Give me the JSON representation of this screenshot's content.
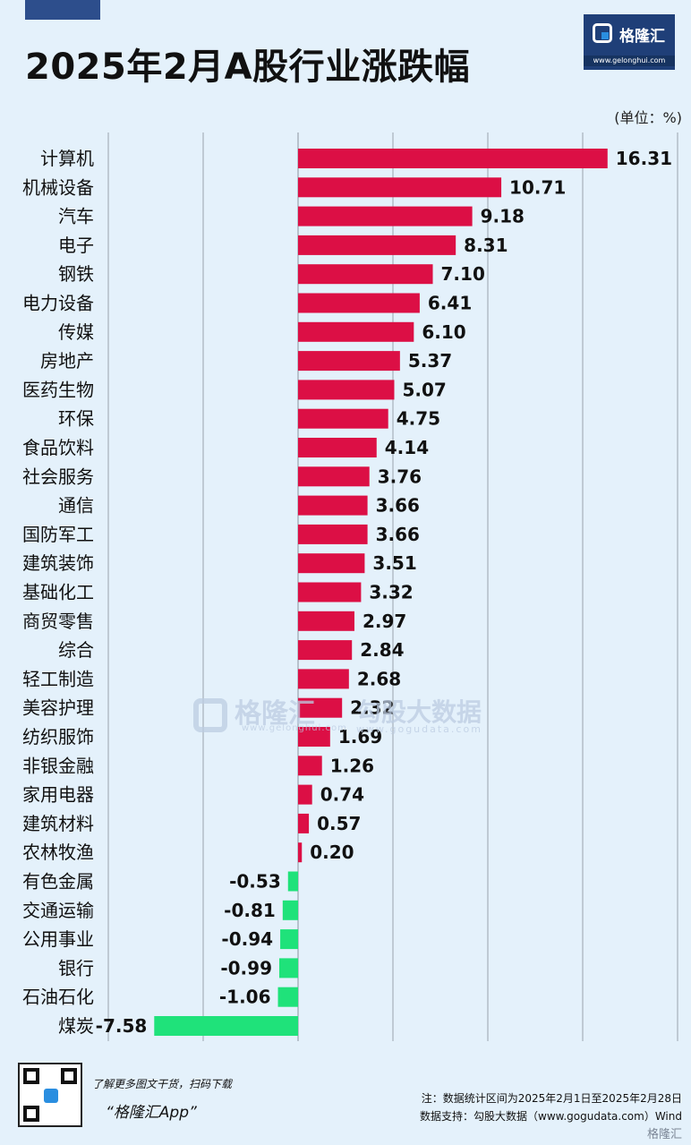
{
  "title": "2025年2月A股行业涨跌幅",
  "brand": {
    "name": "格隆汇",
    "url": "www.gelonghui.com"
  },
  "unit_label": "(单位：%)",
  "watermark": {
    "left": "格隆汇",
    "left_sub": "www.gelonghui.com",
    "right": "勾股大数据",
    "right_sub": "www.gogudata.com"
  },
  "footer": {
    "promo_line1": "了解更多图文干货，扫码下载",
    "promo_line2": "“格隆汇App”",
    "note_line1": "注：数据统计区间为2025年2月1日至2025年2月28日",
    "note_line2": "数据支持：勾股大数据（www.gogudata.com）Wind",
    "corner_logo": "格隆汇"
  },
  "colors": {
    "positive": "#dc0f45",
    "negative": "#1fe27a",
    "grid": "#9aa4ae",
    "background": "#e4f1fb"
  },
  "icons": [
    "gelonghui-logo-icon",
    "qr-code-icon"
  ],
  "chart_data": {
    "type": "bar",
    "orientation": "horizontal",
    "title": "2025年2月A股行业涨跌幅",
    "ylabel": "单位：%",
    "xlim": [
      -10,
      20
    ],
    "grid": true,
    "legend": "none",
    "categories": [
      "计算机",
      "机械设备",
      "汽车",
      "电子",
      "钢铁",
      "电力设备",
      "传媒",
      "房地产",
      "医药生物",
      "环保",
      "食品饮料",
      "社会服务",
      "通信",
      "国防军工",
      "建筑装饰",
      "基础化工",
      "商贸零售",
      "综合",
      "轻工制造",
      "美容护理",
      "纺织服饰",
      "非银金融",
      "家用电器",
      "建筑材料",
      "农林牧渔",
      "有色金属",
      "交通运输",
      "公用事业",
      "银行",
      "石油石化",
      "煤炭"
    ],
    "values": [
      16.31,
      10.71,
      9.18,
      8.31,
      7.1,
      6.41,
      6.1,
      5.37,
      5.07,
      4.75,
      4.14,
      3.76,
      3.66,
      3.66,
      3.51,
      3.32,
      2.97,
      2.84,
      2.68,
      2.32,
      1.69,
      1.26,
      0.74,
      0.57,
      0.2,
      -0.53,
      -0.81,
      -0.94,
      -0.99,
      -1.06,
      -7.58
    ],
    "value_labels": [
      "16.31",
      "10.71",
      "9.18",
      "8.31",
      "7.10",
      "6.41",
      "6.10",
      "5.37",
      "5.07",
      "4.75",
      "4.14",
      "3.76",
      "3.66",
      "3.66",
      "3.51",
      "3.32",
      "2.97",
      "2.84",
      "2.68",
      "2.32",
      "1.69",
      "1.26",
      "0.74",
      "0.57",
      "0.20",
      "-0.53",
      "-0.81",
      "-0.94",
      "-0.99",
      "-1.06",
      "-7.58"
    ]
  }
}
